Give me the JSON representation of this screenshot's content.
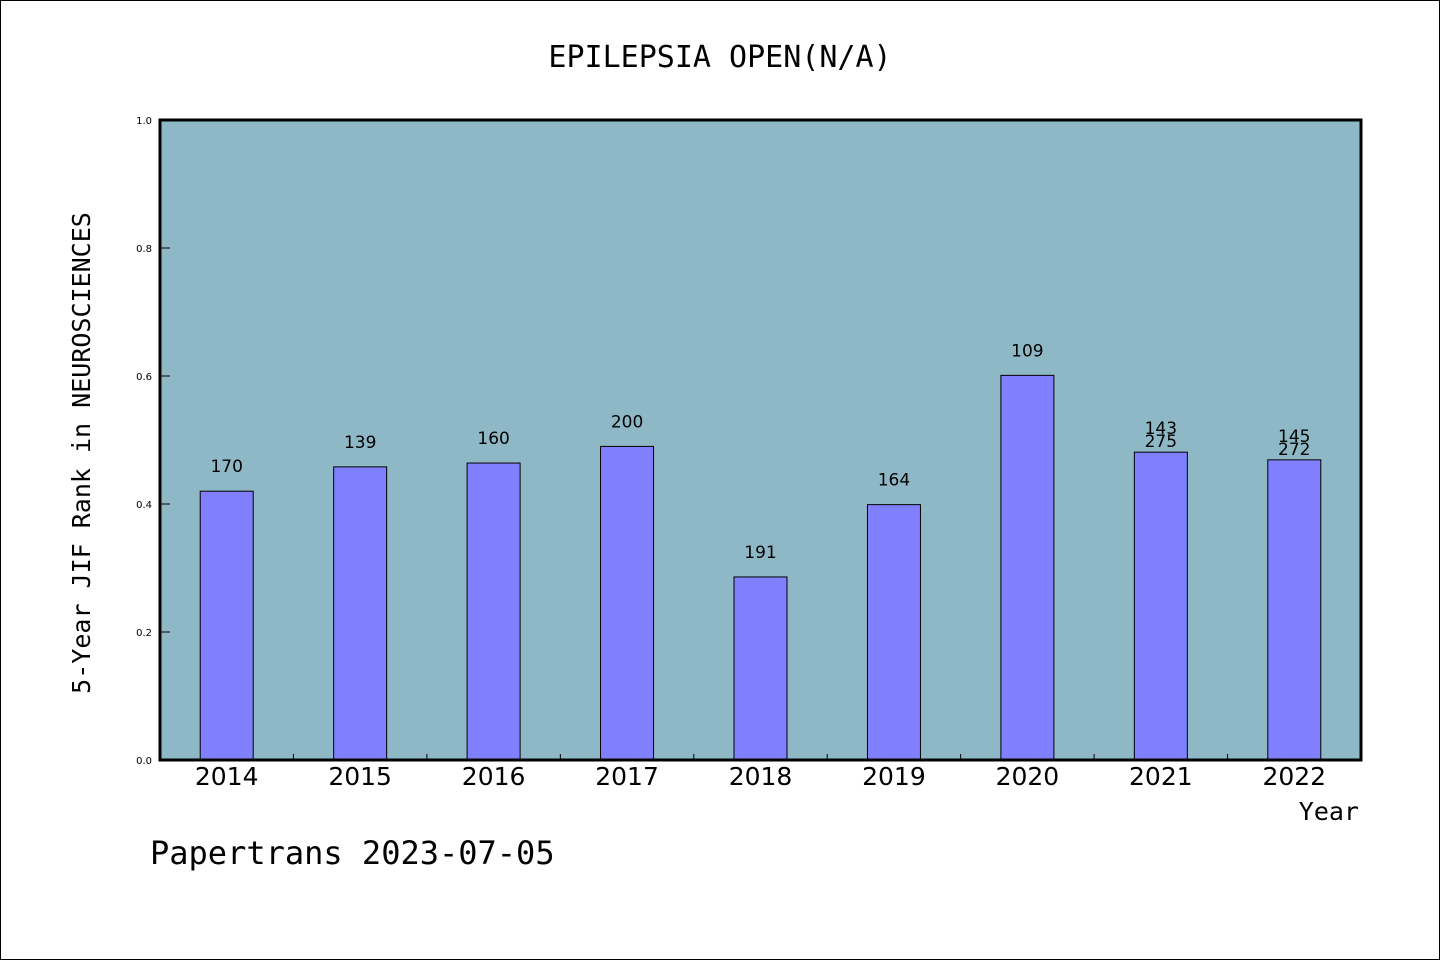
{
  "chart_data": {
    "type": "bar",
    "title": "EPILEPSIA OPEN(N/A)",
    "xlabel": "Year",
    "ylabel": "5-Year JIF Rank in NEUROSCIENCES",
    "ylim": [
      0,
      1.0
    ],
    "yticks": [
      "0.0",
      "0.2",
      "0.4",
      "0.6",
      "0.8",
      "1.0"
    ],
    "categories": [
      "2014",
      "2015",
      "2016",
      "2017",
      "2018",
      "2019",
      "2020",
      "2021",
      "2022"
    ],
    "values": [
      0.42,
      0.458,
      0.464,
      0.49,
      0.286,
      0.399,
      0.601,
      0.481,
      0.469
    ],
    "bar_labels": [
      [
        "170"
      ],
      [
        "139"
      ],
      [
        "160"
      ],
      [
        "200"
      ],
      [
        "191"
      ],
      [
        "164"
      ],
      [
        "109"
      ],
      [
        "143",
        "275"
      ],
      [
        "145",
        "272"
      ]
    ],
    "grid": false,
    "colors": {
      "plot_background": "#8fb8c6",
      "bar_fill": "#8080ff",
      "bar_stroke": "#000000"
    }
  },
  "footer": {
    "watermark": "Papertrans 2023-07-05"
  }
}
